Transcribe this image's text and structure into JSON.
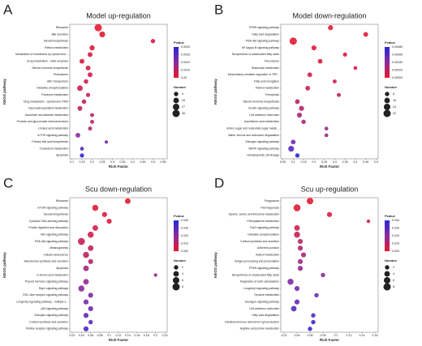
{
  "chart_data": [
    {
      "type": "bubble",
      "panel": "A",
      "title": "Model  up-regulation",
      "xlabel": "Rich Factor",
      "ylabel": "KEGG pathway",
      "categories": [
        "Ribosome",
        "Bile secretion",
        "Steroid biosynthesis",
        "Retinol metabolism",
        "Metabolism of xenobiotics by cytochrome...",
        "Drug metabolism - other enzymes",
        "Steroid hormone biosynthesis",
        "Proteasome",
        "ABC transporters",
        "Oxidative phosphorylation",
        "Porphyrin metabolism",
        "Drug metabolism - cytochrome P450",
        "Glycerophospholipid metabolism",
        "Ascorbate and aldarate metabolism",
        "Pentose and glucuronate interconversions",
        "Linoleic acid metabolism",
        "mTOR signaling pathway",
        "Primary bile acid biosynthesis",
        "Cholesterol metabolism",
        "Apoptosis"
      ],
      "values": [
        0.23,
        0.25,
        0.5,
        0.2,
        0.19,
        0.15,
        0.18,
        0.19,
        0.17,
        0.14,
        0.18,
        0.16,
        0.14,
        0.2,
        0.2,
        0.19,
        0.13,
        0.27,
        0.15,
        0.15
      ],
      "sizes": [
        36,
        20,
        9,
        14,
        12,
        12,
        12,
        12,
        10,
        18,
        8,
        10,
        12,
        7,
        7,
        7,
        12,
        4,
        6,
        8
      ],
      "pvalues": [
        0.0001,
        0.0002,
        0.0003,
        0.0003,
        0.0004,
        0.0004,
        0.0005,
        0.0005,
        0.0006,
        0.0006,
        0.0007,
        0.0008,
        0.0009,
        0.001,
        0.001,
        0.0012,
        0.002,
        0.0024,
        0.003,
        0.0038
      ],
      "xlim": [
        0.09,
        0.57
      ],
      "xticks": [
        0.1,
        0.15,
        0.2,
        0.25,
        0.3,
        0.35,
        0.4,
        0.45,
        0.5,
        0.55
      ],
      "colorbar_title": "Pvalue",
      "colorbar_lim": [
        0,
        0.004
      ],
      "colorbar_ticks": [
        {
          "value": 0.004,
          "label": "0.0040"
        },
        {
          "value": 0.003,
          "label": "0.0030"
        },
        {
          "value": 0.002,
          "label": "0.0020"
        },
        {
          "value": 0.001,
          "label": "0.0010"
        },
        {
          "value": 0,
          "label": "0.00"
        }
      ],
      "colormap": [
        "#e8192c",
        "#8a2a9c",
        "#2727d8"
      ],
      "size_title": "Number",
      "size_ticks": [
        9,
        18,
        27,
        36
      ]
    },
    {
      "type": "bubble",
      "panel": "B",
      "title": "Model  down-regulation",
      "xlabel": "Rich Factor",
      "ylabel": "KEGG pathway",
      "categories": [
        "PPAR signaling pathway",
        "Fatty acid degradation",
        "PI3K-Akt signaling pathway",
        "NF-kappa B signaling pathway",
        "Biosynthesis of unsaturated fatty acids",
        "Peroxisome",
        "Butanoate metabolism",
        "Inflammatory mediator regulation of TRP...",
        "Fatty acid elongation",
        "Retinol metabolism",
        "Ferroptosis",
        "Steroid hormone biosynthesis",
        "Insulin signaling pathway",
        "Cell adhesion molecules",
        "Arachidonic acid metabolism",
        "Amino sugar and nucleotide sugar metab...",
        "Valine, leucine and isoleucine degradation",
        "Estrogen signaling pathway",
        "MAPK signaling pathway",
        "Hematopoietic cell lineage"
      ],
      "values": [
        0.28,
        0.45,
        0.1,
        0.2,
        0.35,
        0.23,
        0.4,
        0.18,
        0.3,
        0.17,
        0.32,
        0.12,
        0.14,
        0.13,
        0.15,
        0.26,
        0.26,
        0.1,
        0.09,
        0.12
      ],
      "sizes": [
        12,
        10,
        32,
        12,
        7,
        10,
        5,
        10,
        6,
        10,
        6,
        10,
        12,
        12,
        8,
        5,
        5,
        10,
        18,
        8
      ],
      "pvalues": [
        1e-05,
        2e-05,
        3e-05,
        4e-05,
        5e-05,
        6e-05,
        8e-05,
        0.0001,
        0.00012,
        0.00014,
        0.00016,
        0.0002,
        0.00022,
        0.00026,
        0.0003,
        0.00034,
        0.00036,
        0.0005,
        0.0006,
        0.00075
      ],
      "xlim": [
        0.04,
        0.51
      ],
      "xticks": [
        0.05,
        0.1,
        0.15,
        0.2,
        0.25,
        0.3,
        0.35,
        0.4,
        0.45,
        0.5
      ],
      "colorbar_title": "Pvalue",
      "colorbar_lim": [
        0,
        0.0008
      ],
      "colorbar_ticks": [
        {
          "value": 0.0008,
          "label": "0.00080"
        },
        {
          "value": 0.0006,
          "label": "0.00060"
        },
        {
          "value": 0.0004,
          "label": "0.00040"
        },
        {
          "value": 0.0002,
          "label": "0.00020"
        },
        {
          "value": 0,
          "label": "0.00000"
        }
      ],
      "colormap": [
        "#e8192c",
        "#8a2a9c",
        "#2727d8"
      ],
      "size_title": "Number",
      "size_ticks": [
        8,
        16,
        24,
        32
      ]
    },
    {
      "type": "bubble",
      "panel": "C",
      "title": "Scu down-regulation",
      "xlabel": "Rich Factor",
      "ylabel": "KEGG pathway",
      "categories": [
        "Ribosome",
        "mTOR signaling pathway",
        "Steroid biosynthesis",
        "Cytosolic DNA-sensing pathway",
        "Protein digestion and absorption",
        "Wnt signaling pathway",
        "PI3K-Akt signaling pathway",
        "Melanogenesis",
        "Cellular senescence",
        "Aldosterone synthesis and secretion",
        "Apoptosis",
        "D-Amino acid metabolism",
        "Thyroid hormone signaling pathway",
        "Rap1 signaling pathway",
        "RIG-I-like receptor signaling pathway",
        "Longevity regulating pathway - multiple s...",
        "p53 signaling pathway",
        "Estrogen signaling pathway",
        "Cortisol synthesis and secretion",
        "Toll-like receptor signaling pathway"
      ],
      "values": [
        0.14,
        0.07,
        0.09,
        0.1,
        0.07,
        0.06,
        0.04,
        0.06,
        0.05,
        0.06,
        0.05,
        0.2,
        0.05,
        0.04,
        0.06,
        0.05,
        0.06,
        0.05,
        0.06,
        0.05
      ],
      "sizes": [
        4,
        5,
        3,
        3,
        4,
        5,
        7,
        4,
        5,
        3,
        4,
        1,
        4,
        5,
        3,
        3,
        3,
        3,
        2,
        3
      ],
      "pvalues": [
        0.001,
        0.002,
        0.003,
        0.004,
        0.005,
        0.006,
        0.007,
        0.008,
        0.01,
        0.012,
        0.014,
        0.016,
        0.018,
        0.02,
        0.022,
        0.024,
        0.026,
        0.028,
        0.03,
        0.033
      ],
      "xlim": [
        0.015,
        0.225
      ],
      "xticks": [
        0.02,
        0.04,
        0.06,
        0.08,
        0.1,
        0.12,
        0.14,
        0.16,
        0.18,
        0.2,
        0.22
      ],
      "colorbar_title": "Pvalue",
      "colorbar_lim": [
        0,
        0.04
      ],
      "colorbar_ticks": [
        {
          "value": 0.04,
          "label": "0.040"
        },
        {
          "value": 0.03,
          "label": "0.030"
        },
        {
          "value": 0.02,
          "label": "0.020"
        },
        {
          "value": 0.01,
          "label": "0.010"
        },
        {
          "value": 0,
          "label": "0.000"
        }
      ],
      "colormap": [
        "#e8192c",
        "#8a2a9c",
        "#2727d8"
      ],
      "size_title": "Number",
      "size_ticks": [
        2,
        4,
        6,
        8
      ]
    },
    {
      "type": "bubble",
      "panel": "D",
      "title": "Scu up-regulation",
      "xlabel": "Rich Factor",
      "ylabel": "KEGG pathway",
      "categories": [
        "Phagosome",
        "Thermogenesis",
        "Glycine, serine and threonine metabolism",
        "Phenylalanine metabolism",
        "FoxO signaling pathway",
        "Oxidative phosphorylation",
        "Cortisol synthesis and secretion",
        "Adherens junction",
        "Retinol metabolism",
        "Antigen processing and presentation",
        "PPAR signaling pathway",
        "Biosynthesis of unsaturated fatty acids",
        "Regulation of actin cytoskeleton",
        "Longevity regulating pathway",
        "Tyrosine metabolism",
        "Glucagon signaling pathway",
        "Cell adhesion molecules",
        "Fatty acid degradation",
        "Intestinal immune network for IgA production",
        "Arginine and proline metabolism"
      ],
      "values": [
        0.06,
        0.04,
        0.09,
        0.15,
        0.04,
        0.04,
        0.045,
        0.045,
        0.05,
        0.045,
        0.045,
        0.08,
        0.03,
        0.04,
        0.07,
        0.04,
        0.035,
        0.065,
        0.065,
        0.06
      ],
      "sizes": [
        6,
        7,
        3,
        1,
        4,
        5,
        3,
        3,
        3,
        3,
        3,
        2,
        5,
        3,
        2,
        3,
        4,
        2,
        2,
        2
      ],
      "pvalues": [
        0.001,
        0.002,
        0.003,
        0.004,
        0.006,
        0.008,
        0.01,
        0.012,
        0.014,
        0.016,
        0.018,
        0.02,
        0.022,
        0.024,
        0.026,
        0.028,
        0.03,
        0.032,
        0.034,
        0.036
      ],
      "xlim": [
        0.015,
        0.165
      ],
      "xticks": [
        0.02,
        0.04,
        0.06,
        0.08,
        0.1,
        0.12,
        0.14,
        0.16
      ],
      "colorbar_title": "Pvalue",
      "colorbar_lim": [
        0,
        0.04
      ],
      "colorbar_ticks": [
        {
          "value": 0.04,
          "label": "0.040"
        },
        {
          "value": 0.03,
          "label": "0.030"
        },
        {
          "value": 0.02,
          "label": "0.020"
        },
        {
          "value": 0.01,
          "label": "0.010"
        },
        {
          "value": 0,
          "label": "0.000"
        }
      ],
      "colormap": [
        "#e8192c",
        "#8a2a9c",
        "#2727d8"
      ],
      "size_title": "Number",
      "size_ticks": [
        2,
        4,
        6,
        8
      ]
    }
  ]
}
